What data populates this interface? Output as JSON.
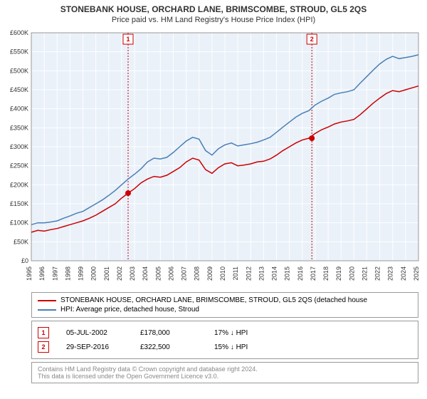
{
  "title": "STONEBANK HOUSE, ORCHARD LANE, BRIMSCOMBE, STROUD, GL5 2QS",
  "subtitle": "Price paid vs. HM Land Registry's House Price Index (HPI)",
  "chart": {
    "type": "line",
    "background_color": "#ffffff",
    "plot_background_color": "#eaf1f9",
    "grid_color": "#ffffff",
    "border_color": "#999999",
    "xlim": [
      1995,
      2025
    ],
    "ylim": [
      0,
      600000
    ],
    "ytick_step": 50000,
    "y_format": "£{}K",
    "x_ticks": [
      1995,
      1996,
      1997,
      1998,
      1999,
      2000,
      2001,
      2002,
      2003,
      2004,
      2005,
      2006,
      2007,
      2008,
      2009,
      2010,
      2011,
      2012,
      2013,
      2014,
      2015,
      2016,
      2017,
      2018,
      2019,
      2020,
      2021,
      2022,
      2023,
      2024,
      2025
    ],
    "series": [
      {
        "name": "property_price",
        "color": "#cc0000",
        "width": 1.5,
        "points": [
          [
            1995,
            75000
          ],
          [
            1995.5,
            80000
          ],
          [
            1996,
            78000
          ],
          [
            1996.5,
            82000
          ],
          [
            1997,
            85000
          ],
          [
            1997.5,
            90000
          ],
          [
            1998,
            95000
          ],
          [
            1998.5,
            100000
          ],
          [
            1999,
            105000
          ],
          [
            1999.5,
            112000
          ],
          [
            2000,
            120000
          ],
          [
            2000.5,
            130000
          ],
          [
            2001,
            140000
          ],
          [
            2001.5,
            150000
          ],
          [
            2002,
            165000
          ],
          [
            2002.5,
            178000
          ],
          [
            2003,
            190000
          ],
          [
            2003.5,
            205000
          ],
          [
            2004,
            215000
          ],
          [
            2004.5,
            222000
          ],
          [
            2005,
            220000
          ],
          [
            2005.5,
            225000
          ],
          [
            2006,
            235000
          ],
          [
            2006.5,
            245000
          ],
          [
            2007,
            260000
          ],
          [
            2007.5,
            270000
          ],
          [
            2008,
            265000
          ],
          [
            2008.5,
            240000
          ],
          [
            2009,
            230000
          ],
          [
            2009.5,
            245000
          ],
          [
            2010,
            255000
          ],
          [
            2010.5,
            258000
          ],
          [
            2011,
            250000
          ],
          [
            2011.5,
            252000
          ],
          [
            2012,
            255000
          ],
          [
            2012.5,
            260000
          ],
          [
            2013,
            262000
          ],
          [
            2013.5,
            268000
          ],
          [
            2014,
            278000
          ],
          [
            2014.5,
            290000
          ],
          [
            2015,
            300000
          ],
          [
            2015.5,
            310000
          ],
          [
            2016,
            318000
          ],
          [
            2016.5,
            322500
          ],
          [
            2017,
            335000
          ],
          [
            2017.5,
            345000
          ],
          [
            2018,
            352000
          ],
          [
            2018.5,
            360000
          ],
          [
            2019,
            365000
          ],
          [
            2019.5,
            368000
          ],
          [
            2020,
            372000
          ],
          [
            2020.5,
            385000
          ],
          [
            2021,
            400000
          ],
          [
            2021.5,
            415000
          ],
          [
            2022,
            428000
          ],
          [
            2022.5,
            440000
          ],
          [
            2023,
            448000
          ],
          [
            2023.5,
            445000
          ],
          [
            2024,
            450000
          ],
          [
            2024.5,
            455000
          ],
          [
            2025,
            460000
          ]
        ]
      },
      {
        "name": "hpi",
        "color": "#4a7fb5",
        "width": 1.5,
        "points": [
          [
            1995,
            95000
          ],
          [
            1995.5,
            100000
          ],
          [
            1996,
            100000
          ],
          [
            1996.5,
            102000
          ],
          [
            1997,
            105000
          ],
          [
            1997.5,
            112000
          ],
          [
            1998,
            118000
          ],
          [
            1998.5,
            125000
          ],
          [
            1999,
            130000
          ],
          [
            1999.5,
            140000
          ],
          [
            2000,
            150000
          ],
          [
            2000.5,
            160000
          ],
          [
            2001,
            172000
          ],
          [
            2001.5,
            185000
          ],
          [
            2002,
            200000
          ],
          [
            2002.5,
            215000
          ],
          [
            2003,
            228000
          ],
          [
            2003.5,
            242000
          ],
          [
            2004,
            260000
          ],
          [
            2004.5,
            270000
          ],
          [
            2005,
            268000
          ],
          [
            2005.5,
            272000
          ],
          [
            2006,
            285000
          ],
          [
            2006.5,
            300000
          ],
          [
            2007,
            315000
          ],
          [
            2007.5,
            325000
          ],
          [
            2008,
            320000
          ],
          [
            2008.5,
            290000
          ],
          [
            2009,
            278000
          ],
          [
            2009.5,
            295000
          ],
          [
            2010,
            305000
          ],
          [
            2010.5,
            310000
          ],
          [
            2011,
            302000
          ],
          [
            2011.5,
            305000
          ],
          [
            2012,
            308000
          ],
          [
            2012.5,
            312000
          ],
          [
            2013,
            318000
          ],
          [
            2013.5,
            325000
          ],
          [
            2014,
            338000
          ],
          [
            2014.5,
            352000
          ],
          [
            2015,
            365000
          ],
          [
            2015.5,
            378000
          ],
          [
            2016,
            388000
          ],
          [
            2016.5,
            395000
          ],
          [
            2017,
            410000
          ],
          [
            2017.5,
            420000
          ],
          [
            2018,
            428000
          ],
          [
            2018.5,
            438000
          ],
          [
            2019,
            442000
          ],
          [
            2019.5,
            445000
          ],
          [
            2020,
            450000
          ],
          [
            2020.5,
            468000
          ],
          [
            2021,
            485000
          ],
          [
            2021.5,
            502000
          ],
          [
            2022,
            518000
          ],
          [
            2022.5,
            530000
          ],
          [
            2023,
            538000
          ],
          [
            2023.5,
            532000
          ],
          [
            2024,
            535000
          ],
          [
            2024.5,
            538000
          ],
          [
            2025,
            542000
          ]
        ]
      }
    ],
    "markers": [
      {
        "label": "1",
        "x": 2002.5,
        "y": 178000,
        "color": "#cc0000"
      },
      {
        "label": "2",
        "x": 2016.74,
        "y": 322500,
        "color": "#cc0000"
      }
    ]
  },
  "legend": {
    "items": [
      {
        "color": "#cc0000",
        "label": "STONEBANK HOUSE, ORCHARD LANE, BRIMSCOMBE, STROUD, GL5 2QS (detached house"
      },
      {
        "color": "#4a7fb5",
        "label": "HPI: Average price, detached house, Stroud"
      }
    ]
  },
  "marker_table": {
    "rows": [
      {
        "num": "1",
        "date": "05-JUL-2002",
        "price": "£178,000",
        "diff": "17% ↓ HPI"
      },
      {
        "num": "2",
        "date": "29-SEP-2016",
        "price": "£322,500",
        "diff": "15% ↓ HPI"
      }
    ]
  },
  "attribution": {
    "line1": "Contains HM Land Registry data © Crown copyright and database right 2024.",
    "line2": "This data is licensed under the Open Government Licence v3.0."
  }
}
